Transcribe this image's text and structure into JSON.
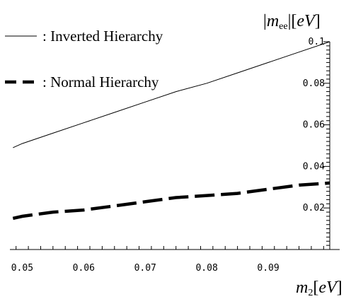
{
  "chart_data": {
    "type": "line",
    "xlim": [
      0.048,
      0.1
    ],
    "ylim": [
      0,
      0.1
    ],
    "x_ticks": [
      "0.05",
      "0.06",
      "0.07",
      "0.08",
      "0.09"
    ],
    "y_ticks": [
      "0.02",
      "0.04",
      "0.06",
      "0.08",
      "0.1"
    ],
    "xlabel": {
      "main": "m",
      "sub": "2",
      "unit": "eV"
    },
    "ylabel": {
      "abs_open": "|",
      "main": "m",
      "sub": "ee",
      "abs_close": "|",
      "unit": "eV"
    },
    "series": [
      {
        "name": ": Inverted Hierarchy",
        "style": "solid-thin",
        "x": [
          0.0485,
          0.05,
          0.055,
          0.06,
          0.065,
          0.07,
          0.075,
          0.08,
          0.085,
          0.09,
          0.095,
          0.1
        ],
        "y": [
          0.049,
          0.051,
          0.056,
          0.061,
          0.066,
          0.071,
          0.076,
          0.08,
          0.085,
          0.09,
          0.095,
          0.1
        ]
      },
      {
        "name": ": Normal Hierarchy",
        "style": "dashed-thick",
        "x": [
          0.0485,
          0.05,
          0.055,
          0.06,
          0.065,
          0.07,
          0.075,
          0.08,
          0.085,
          0.09,
          0.095,
          0.1
        ],
        "y": [
          0.015,
          0.016,
          0.018,
          0.019,
          0.021,
          0.023,
          0.025,
          0.026,
          0.027,
          0.029,
          0.031,
          0.032
        ]
      }
    ],
    "grid": false,
    "legend_position": "top-left",
    "colors": {
      "line": "#000000",
      "axis": "#000000"
    }
  }
}
